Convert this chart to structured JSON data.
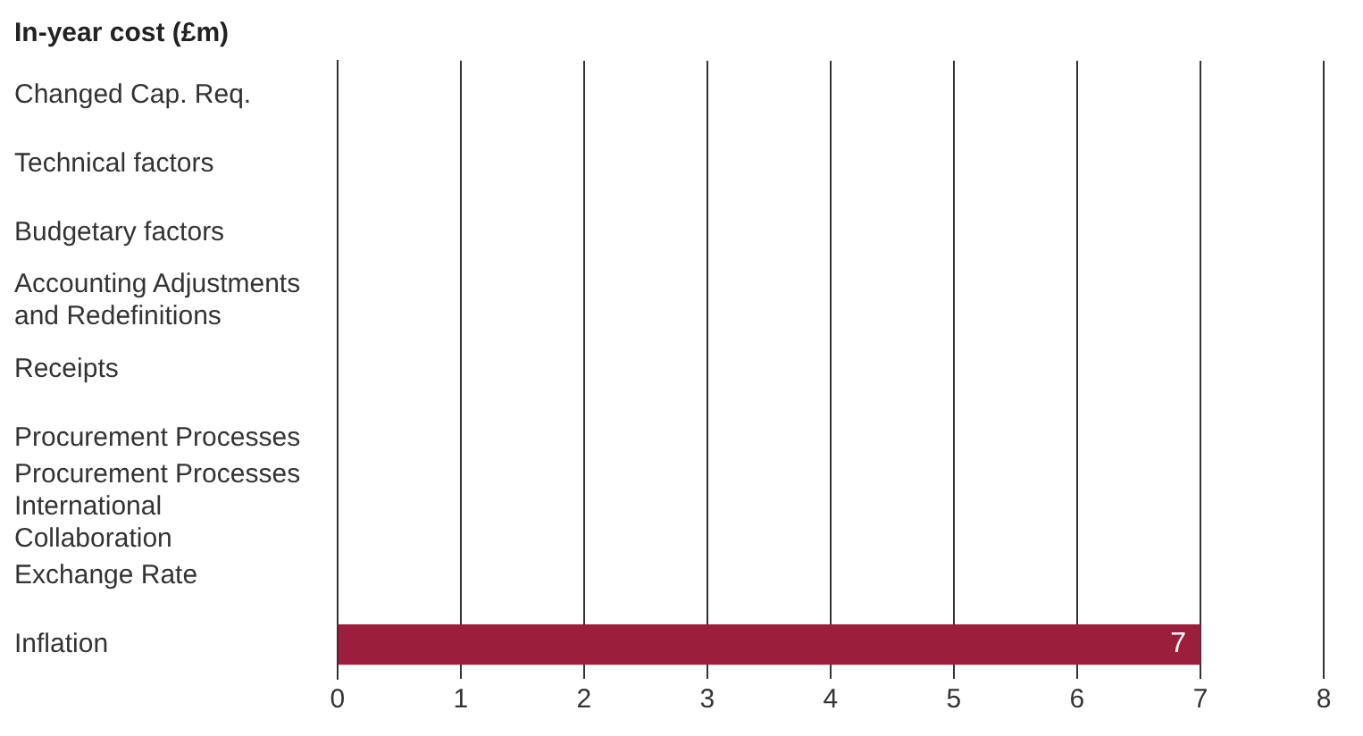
{
  "chart_data": {
    "type": "bar",
    "orientation": "horizontal",
    "title": "In-year cost (£m)",
    "categories": [
      "Changed Cap. Req.",
      "Technical factors",
      "Budgetary factors",
      "Accounting Adjustments and Redefinitions",
      "Receipts",
      "Procurement Processes",
      "Procurement Processes International Collaboration",
      "Exchange Rate",
      "Inflation"
    ],
    "values": [
      null,
      null,
      null,
      null,
      null,
      null,
      null,
      null,
      7
    ],
    "color": "#9b1f3d",
    "xlim": [
      0,
      8
    ],
    "xticks": [
      0,
      1,
      2,
      3,
      4,
      5,
      6,
      7,
      8
    ],
    "grid": "x",
    "data_labels": true,
    "legend": false
  }
}
